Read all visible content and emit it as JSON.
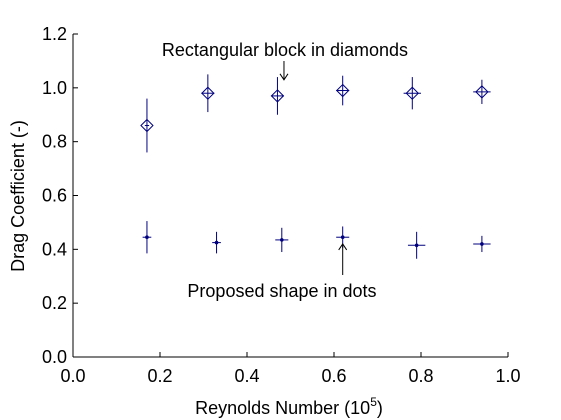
{
  "chart_data": {
    "type": "scatter",
    "xlabel": "Reynolds Number (10",
    "xlabel_superscript": "5",
    "xlabel_suffix": ")",
    "ylabel": "Drag Coefficient (-)",
    "xlim": [
      0.0,
      1.0
    ],
    "ylim": [
      0.0,
      1.2
    ],
    "xticks": [
      "0.0",
      "0.2",
      "0.4",
      "0.6",
      "0.8",
      "1.0"
    ],
    "yticks": [
      "0.0",
      "0.2",
      "0.4",
      "0.6",
      "0.8",
      "1.0",
      "1.2"
    ],
    "grid": false,
    "color": "#00007f",
    "series": [
      {
        "marker": "diamond",
        "points": [
          {
            "x": 0.17,
            "y": 0.86,
            "xerr": 0.005,
            "yerr": 0.1
          },
          {
            "x": 0.31,
            "y": 0.98,
            "xerr": 0.015,
            "yerr": 0.07
          },
          {
            "x": 0.47,
            "y": 0.97,
            "xerr": 0.015,
            "yerr": 0.07
          },
          {
            "x": 0.62,
            "y": 0.99,
            "xerr": 0.015,
            "yerr": 0.055
          },
          {
            "x": 0.78,
            "y": 0.98,
            "xerr": 0.02,
            "yerr": 0.06
          },
          {
            "x": 0.94,
            "y": 0.985,
            "xerr": 0.02,
            "yerr": 0.045
          }
        ]
      },
      {
        "marker": "dot",
        "points": [
          {
            "x": 0.17,
            "y": 0.445,
            "xerr": 0.01,
            "yerr": 0.06
          },
          {
            "x": 0.33,
            "y": 0.425,
            "xerr": 0.01,
            "yerr": 0.04
          },
          {
            "x": 0.48,
            "y": 0.435,
            "xerr": 0.015,
            "yerr": 0.045
          },
          {
            "x": 0.62,
            "y": 0.445,
            "xerr": 0.015,
            "yerr": 0.04
          },
          {
            "x": 0.79,
            "y": 0.415,
            "xerr": 0.02,
            "yerr": 0.05
          },
          {
            "x": 0.94,
            "y": 0.42,
            "xerr": 0.02,
            "yerr": 0.03
          }
        ]
      }
    ],
    "annotations": [
      {
        "text": "Rectangular block in diamonds",
        "arrow_from": [
          0.485,
          1.06
        ],
        "arrow_to": [
          0.485,
          1.0
        ]
      },
      {
        "text": "Proposed shape in dots",
        "arrow_from": [
          0.62,
          0.36
        ],
        "arrow_to": [
          0.62,
          0.42
        ]
      }
    ]
  }
}
